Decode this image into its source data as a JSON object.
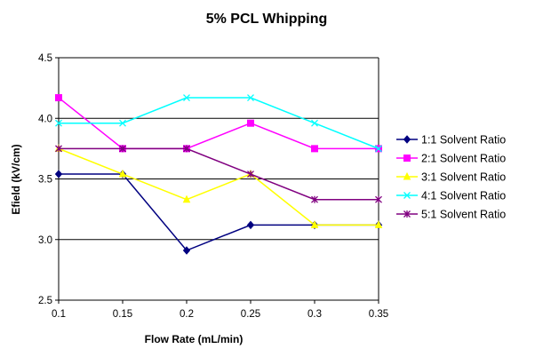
{
  "chart_data": {
    "type": "line",
    "title": "5% PCL Whipping",
    "xlabel": "Flow Rate (mL/min)",
    "ylabel": "Efield (kV/cm)",
    "x": [
      0.1,
      0.15,
      0.2,
      0.25,
      0.3,
      0.35
    ],
    "x_tick_labels": [
      "0.1",
      "0.15",
      "0.2",
      "0.25",
      "0.3",
      "0.35"
    ],
    "ylim": [
      2.5,
      4.5
    ],
    "y_ticks": [
      2.5,
      3.0,
      3.5,
      4.0,
      4.5
    ],
    "y_tick_labels": [
      "2.5",
      "3.0",
      "3.5",
      "4.0",
      "4.5"
    ],
    "grid": "horizontal",
    "legend_position": "right",
    "series": [
      {
        "name": "1:1 Solvent Ratio",
        "color": "#000080",
        "marker": "diamond",
        "values": [
          3.54,
          3.54,
          2.91,
          3.12,
          3.12,
          3.12
        ]
      },
      {
        "name": "2:1 Solvent Ratio",
        "color": "#FF00FF",
        "marker": "square",
        "values": [
          4.17,
          3.75,
          3.75,
          3.96,
          3.75,
          3.75
        ]
      },
      {
        "name": "3:1 Solvent Ratio",
        "color": "#FFFF00",
        "marker": "triangle",
        "values": [
          3.75,
          3.54,
          3.33,
          3.54,
          3.12,
          3.12
        ]
      },
      {
        "name": "4:1 Solvent Ratio",
        "color": "#00FFFF",
        "marker": "x",
        "values": [
          3.96,
          3.96,
          4.17,
          4.17,
          3.96,
          3.75
        ]
      },
      {
        "name": "5:1 Solvent Ratio",
        "color": "#800080",
        "marker": "star",
        "values": [
          3.75,
          3.75,
          3.75,
          3.54,
          3.33,
          3.33
        ]
      }
    ]
  }
}
